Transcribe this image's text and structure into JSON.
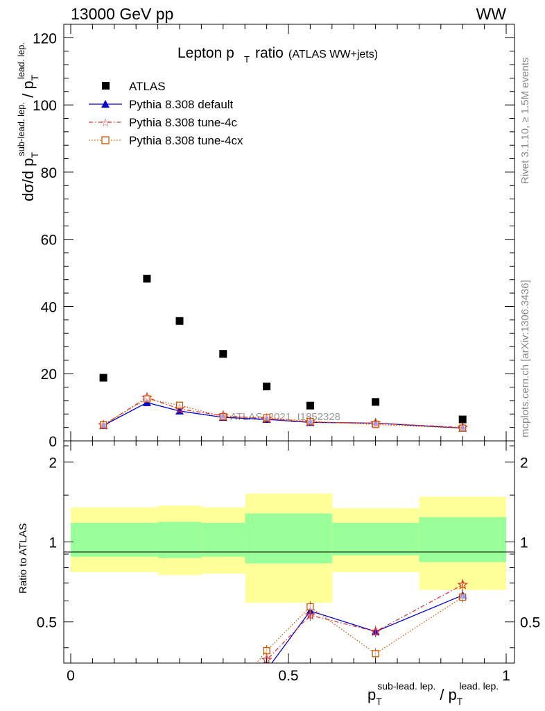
{
  "header": {
    "energy": "13000 GeV pp",
    "process": "WW"
  },
  "side_text": {
    "rivet": "Rivet 3.1.10, ≥ 1.5M events",
    "mcplots": "mcplots.cern.ch [arXiv:1306.3436]"
  },
  "title": {
    "main": "Lepton p",
    "sub": "T",
    "rest": "ratio",
    "small": "(ATLAS WW+jets)"
  },
  "watermark": "ATLAS_2021_I1852328",
  "upper_axis": {
    "ylabel_parts": [
      "dσ/d p",
      "T",
      "sub-lead. lep.",
      " / p",
      "T",
      "lead. lep."
    ],
    "ticks": [
      0,
      20,
      40,
      60,
      80,
      100,
      120
    ],
    "tick_labels": [
      "0",
      "20",
      "40",
      "60",
      "80",
      "100",
      "120"
    ]
  },
  "lower_axis": {
    "ylabel": "Ratio to ATLAS",
    "tick_labels": [
      "0.5",
      "1",
      "2"
    ],
    "xtick_labels": [
      "0",
      "0.5",
      "1"
    ],
    "xlabel_parts": [
      "p",
      "T",
      "sub-lead. lep.",
      "/ p",
      "T",
      "lead. lep."
    ]
  },
  "legend": [
    "ATLAS",
    "Pythia 8.308 default",
    "Pythia 8.308 tune-4c",
    "Pythia 8.308 tune-4cx"
  ],
  "colors": {
    "data": "#000000",
    "default": "#0000cc",
    "tune4c": "#dd3333",
    "tune4cx": "#cc5500",
    "band_inner": "#99ff99",
    "band_outer": "#ffff99"
  },
  "chart_data": {
    "type": "scatter",
    "xlim": [
      0,
      1
    ],
    "ylim": [
      0,
      124
    ],
    "ratio_ylim": [
      0.35,
      2.4
    ],
    "bins": [
      [
        0,
        0.15
      ],
      [
        0.15,
        0.25
      ],
      [
        0.25,
        0.3
      ],
      [
        0.3,
        0.4
      ],
      [
        0.4,
        0.5
      ],
      [
        0.5,
        0.6
      ],
      [
        0.6,
        0.8
      ],
      [
        0.8,
        1.0
      ]
    ],
    "x": [
      0.075,
      0.175,
      0.25,
      0.35,
      0.45,
      0.55,
      0.7,
      0.9
    ],
    "ratio_bands": [
      {
        "x": [
          0,
          0.2
        ],
        "inner": [
          0.88,
          1.18
        ],
        "outer": [
          0.77,
          1.35
        ]
      },
      {
        "x": [
          0.2,
          0.3
        ],
        "inner": [
          0.87,
          1.19
        ],
        "outer": [
          0.75,
          1.37
        ]
      },
      {
        "x": [
          0.3,
          0.4
        ],
        "inner": [
          0.88,
          1.18
        ],
        "outer": [
          0.76,
          1.35
        ]
      },
      {
        "x": [
          0.4,
          0.6
        ],
        "inner": [
          0.83,
          1.28
        ],
        "outer": [
          0.59,
          1.52
        ]
      },
      {
        "x": [
          0.6,
          0.8
        ],
        "inner": [
          0.89,
          1.18
        ],
        "outer": [
          0.77,
          1.34
        ]
      },
      {
        "x": [
          0.8,
          1.0
        ],
        "inner": [
          0.84,
          1.24
        ],
        "outer": [
          0.66,
          1.48
        ]
      }
    ],
    "series": [
      {
        "name": "ATLAS",
        "values": [
          18.8,
          48.3,
          35.7,
          25.9,
          16.2,
          10.5,
          11.6,
          6.4
        ],
        "ratio": [
          1,
          1,
          1,
          1,
          1,
          1,
          1,
          1
        ]
      },
      {
        "name": "Pythia 8.308 default",
        "values": [
          4.6,
          11.4,
          8.9,
          7.0,
          6.4,
          5.5,
          5.3,
          3.8
        ],
        "ratio": [
          null,
          null,
          null,
          null,
          0.33,
          0.55,
          0.46,
          0.63
        ]
      },
      {
        "name": "Pythia 8.308 tune-4c",
        "values": [
          4.7,
          12.9,
          9.5,
          7.5,
          6.6,
          5.6,
          5.3,
          4.0
        ],
        "ratio": [
          null,
          null,
          null,
          null,
          0.36,
          0.53,
          0.46,
          0.69
        ]
      },
      {
        "name": "Pythia 8.308 tune-4cx",
        "values": [
          4.8,
          12.5,
          10.6,
          7.2,
          6.9,
          5.8,
          4.9,
          3.8
        ],
        "ratio": [
          null,
          null,
          null,
          null,
          0.39,
          0.57,
          0.38,
          0.62
        ]
      }
    ]
  }
}
